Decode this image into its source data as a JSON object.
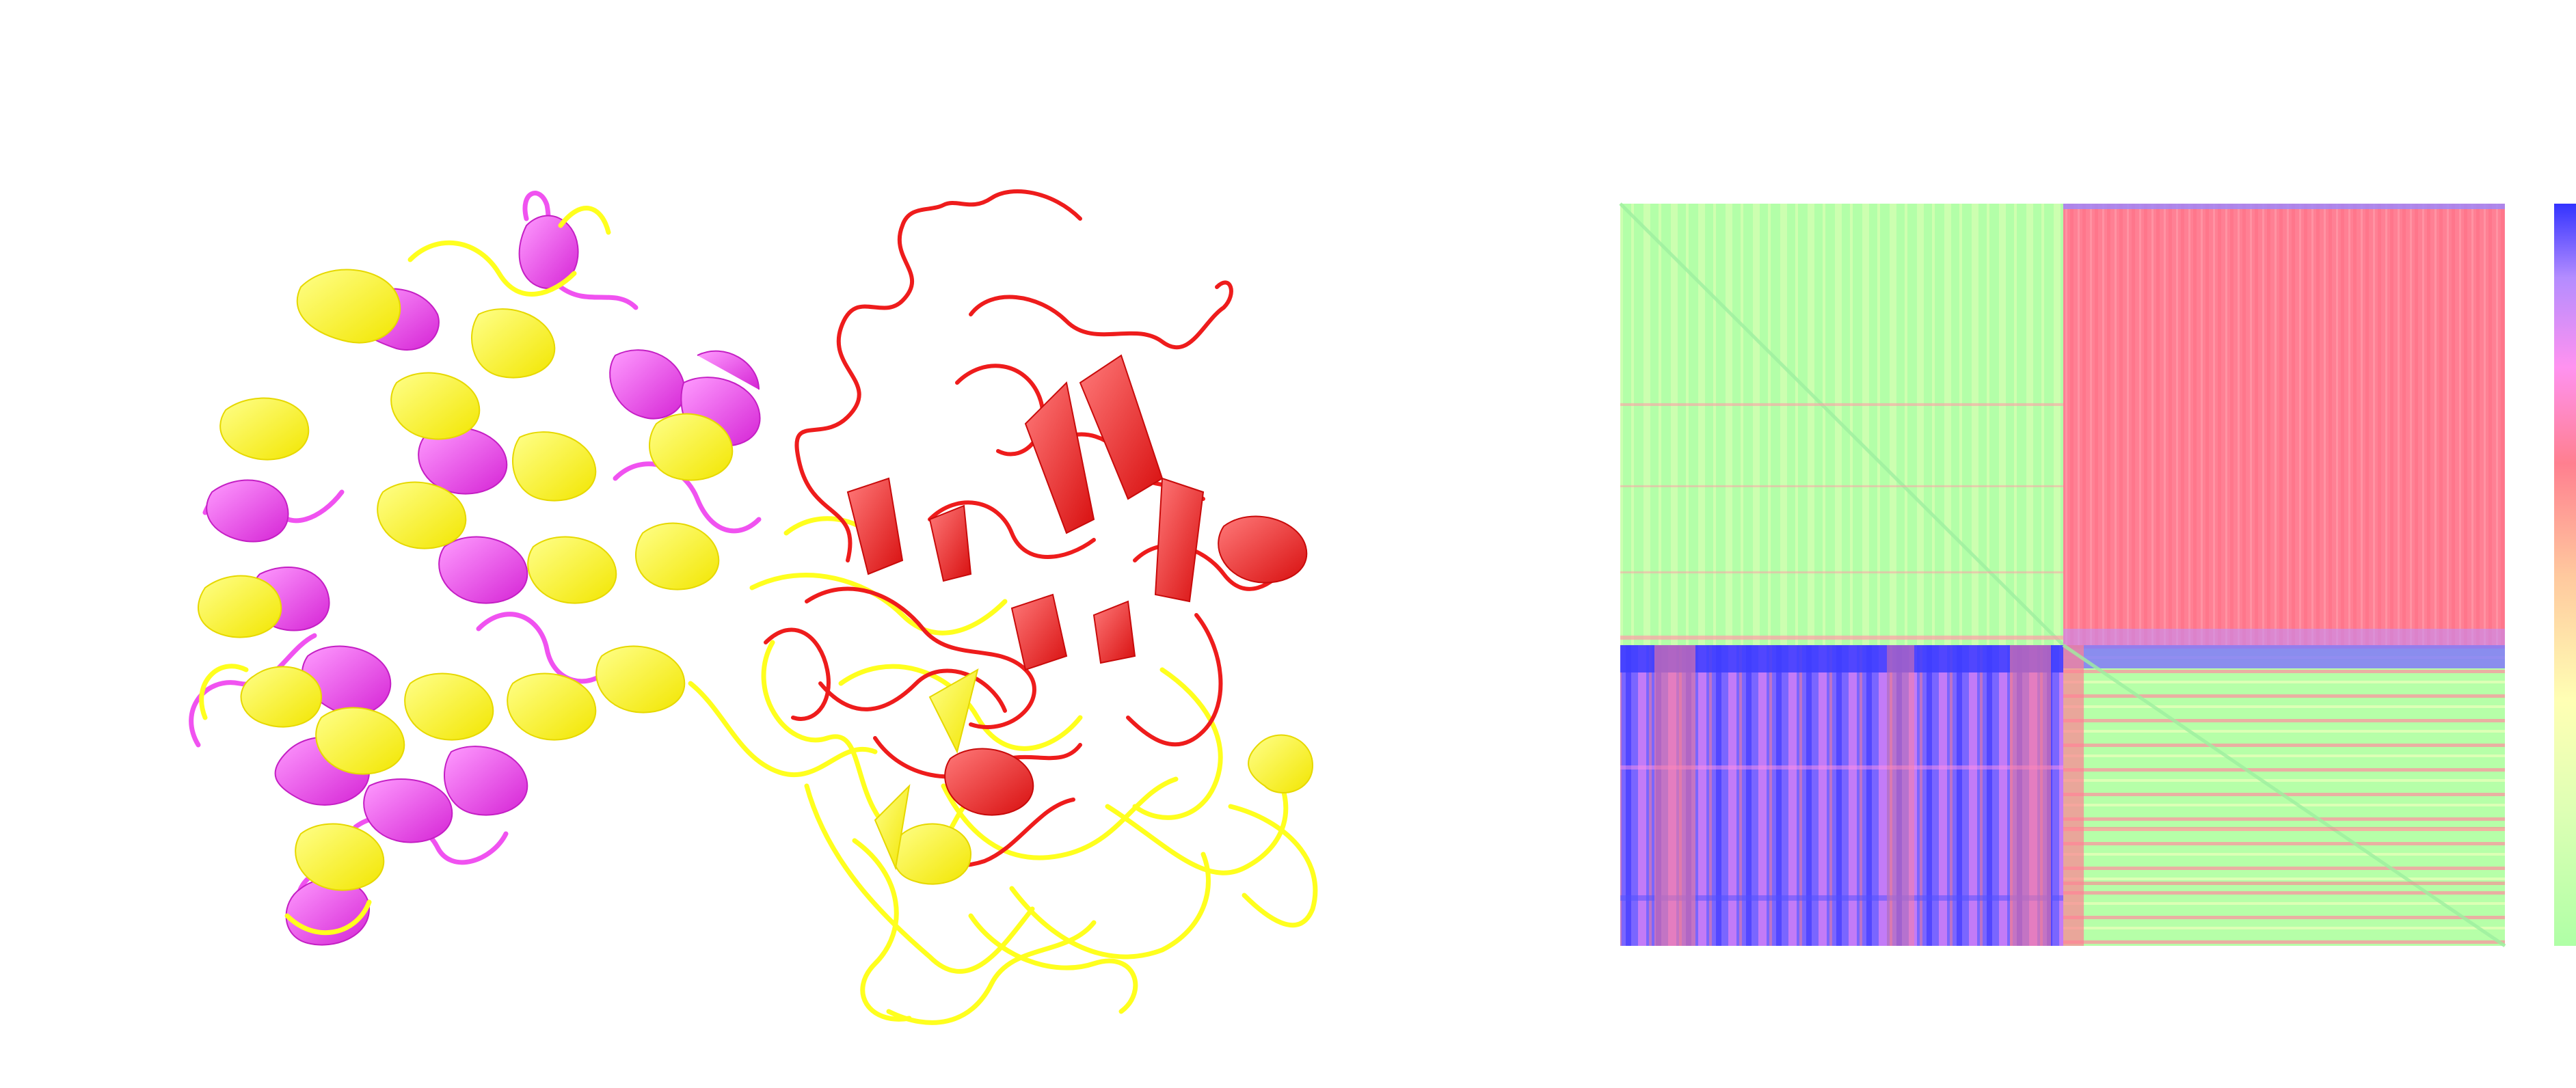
{
  "figure": {
    "left_panel": "protein-structure-superposition",
    "right_panel": "pairwise-distance-heatmap"
  },
  "structure": {
    "chains": [
      {
        "id": "chain-a",
        "color": "#f052f0",
        "style": "cartoon"
      },
      {
        "id": "chain-b",
        "color": "#ffff1e",
        "style": "cartoon"
      },
      {
        "id": "chain-c",
        "color": "#ee1c1c",
        "style": "cartoon"
      }
    ]
  },
  "heatmap": {
    "colormap": [
      "#afffa6",
      "#ffffb4",
      "#ffc89e",
      "#ff7f8f",
      "#ff92f0",
      "#b48cff",
      "#3333ff"
    ],
    "blocks": [
      {
        "region": "upper-left",
        "level": 0.08,
        "pattern": "stripes"
      },
      {
        "region": "upper-right",
        "level": 0.5,
        "pattern": "stripes"
      },
      {
        "region": "lower-left",
        "level": 0.82,
        "pattern": "stripes"
      },
      {
        "region": "lower-right",
        "level": 0.08,
        "pattern": "stripes"
      }
    ],
    "colorbar": {
      "orientation": "vertical",
      "ticks": []
    }
  }
}
